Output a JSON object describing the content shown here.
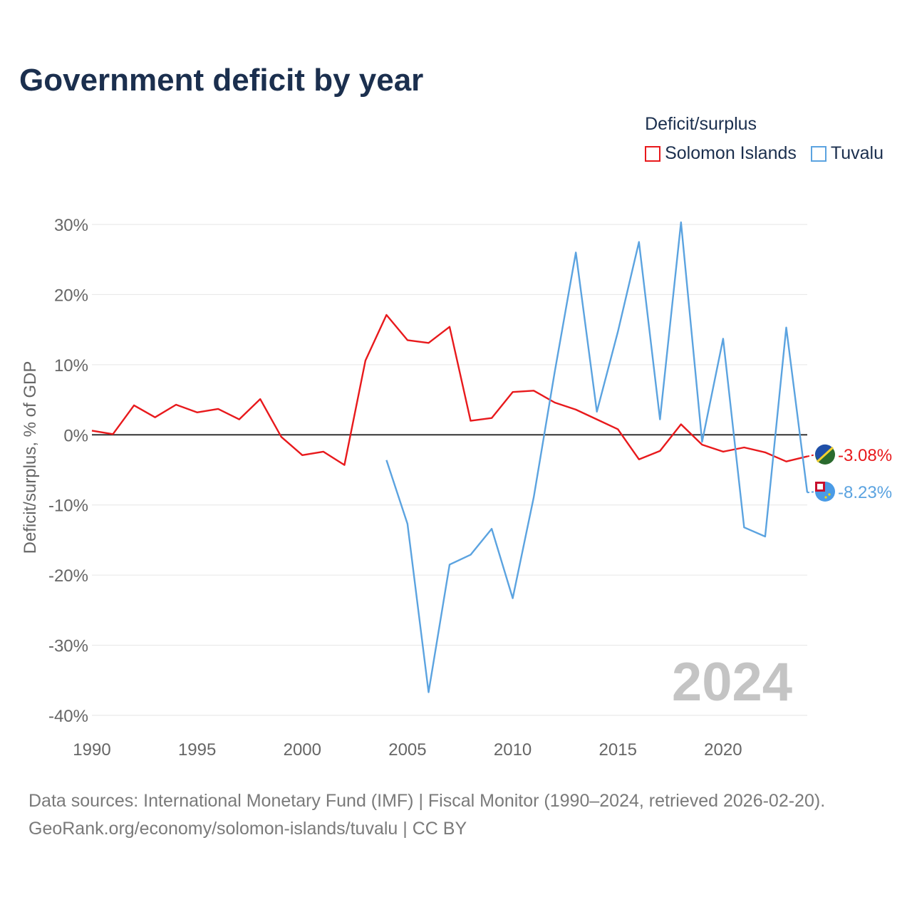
{
  "title": "Government deficit by year",
  "legend": {
    "title": "Deficit/surplus",
    "items": [
      {
        "label": "Solomon Islands",
        "color": "#e8191c"
      },
      {
        "label": "Tuvalu",
        "color": "#5ba3e0"
      }
    ]
  },
  "year_watermark": "2024",
  "footer": {
    "line1": "Data sources: International Monetary Fund (IMF) | Fiscal Monitor (1990–2024, retrieved 2026-02-20).",
    "line2": "GeoRank.org/economy/solomon-islands/tuvalu | CC BY"
  },
  "chart_data": {
    "type": "line",
    "title": "Government deficit by year",
    "ylabel": "Deficit/surplus, % of GDP",
    "xlabel": "",
    "xlim": [
      1990,
      2024
    ],
    "ylim": [
      -40,
      30
    ],
    "yticks": [
      30,
      20,
      10,
      0,
      -10,
      -20,
      -30,
      -40
    ],
    "ytick_labels": [
      "30%",
      "20%",
      "10%",
      "0%",
      "-10%",
      "-20%",
      "-30%",
      "-40%"
    ],
    "xticks": [
      1990,
      1995,
      2000,
      2005,
      2010,
      2015,
      2020
    ],
    "xtick_labels": [
      "1990",
      "1995",
      "2000",
      "2005",
      "2010",
      "2015",
      "2020"
    ],
    "grid": true,
    "series": [
      {
        "name": "Solomon Islands",
        "color": "#e8191c",
        "end_label": "-3.08%",
        "x": [
          1990,
          1991,
          1992,
          1993,
          1994,
          1995,
          1996,
          1997,
          1998,
          1999,
          2000,
          2001,
          2002,
          2003,
          2004,
          2005,
          2006,
          2007,
          2008,
          2009,
          2010,
          2011,
          2012,
          2013,
          2014,
          2015,
          2016,
          2017,
          2018,
          2019,
          2020,
          2021,
          2022,
          2023,
          2024
        ],
        "values": [
          0.6,
          0.1,
          4.2,
          2.5,
          4.3,
          3.2,
          3.7,
          2.2,
          5.1,
          -0.3,
          -2.9,
          -2.4,
          -4.3,
          10.6,
          17.1,
          13.5,
          13.1,
          15.4,
          2.0,
          2.4,
          6.1,
          6.3,
          4.6,
          3.6,
          2.2,
          0.8,
          -3.5,
          -2.3,
          1.5,
          -1.4,
          -2.4,
          -1.8,
          -2.5,
          -3.8,
          -3.08
        ]
      },
      {
        "name": "Tuvalu",
        "color": "#5ba3e0",
        "end_label": "-8.23%",
        "x": [
          2004,
          2005,
          2006,
          2007,
          2008,
          2009,
          2010,
          2011,
          2012,
          2013,
          2014,
          2015,
          2016,
          2017,
          2018,
          2019,
          2020,
          2021,
          2022,
          2023,
          2024
        ],
        "values": [
          -3.6,
          -12.7,
          -36.7,
          -18.5,
          -17.1,
          -13.4,
          -23.3,
          -8.9,
          9.0,
          26.0,
          3.3,
          14.7,
          27.5,
          2.2,
          30.3,
          -1.0,
          13.7,
          -13.2,
          -14.5,
          15.3,
          -8.23
        ]
      }
    ]
  }
}
